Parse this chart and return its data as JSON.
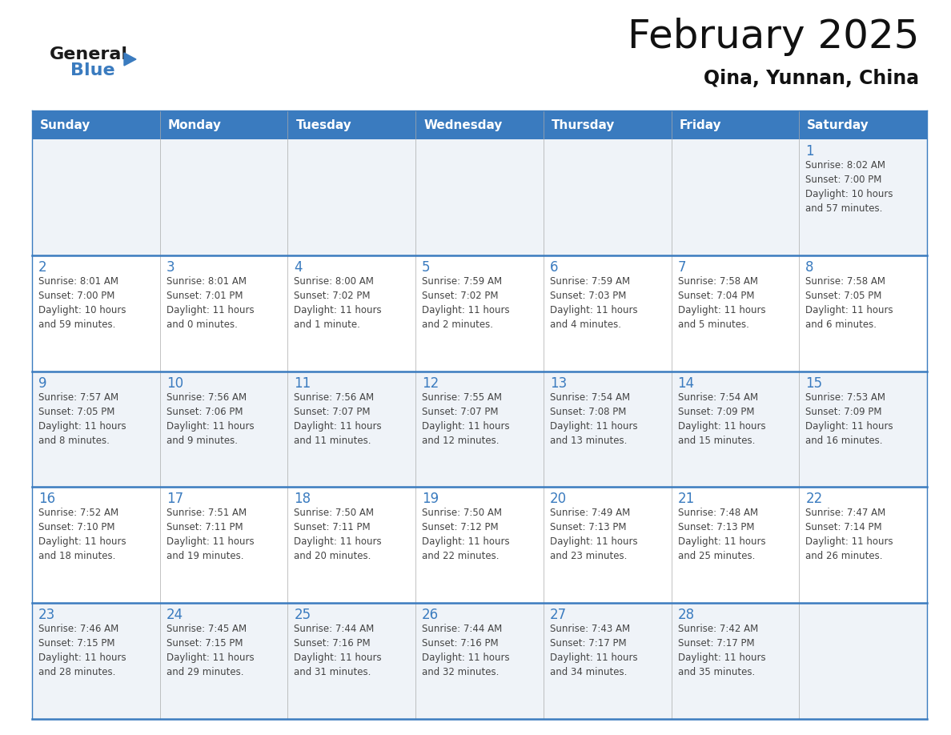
{
  "title": "February 2025",
  "subtitle": "Qina, Yunnan, China",
  "header_bg_color": "#3a7bbf",
  "header_text_color": "#ffffff",
  "days_of_week": [
    "Sunday",
    "Monday",
    "Tuesday",
    "Wednesday",
    "Thursday",
    "Friday",
    "Saturday"
  ],
  "cell_bg_row0": "#eff3f8",
  "cell_bg_row1": "#ffffff",
  "divider_color": "#3a7bbf",
  "day_number_color": "#3a7bbf",
  "text_color": "#444444",
  "logo_text_color": "#1a1a1a",
  "logo_blue_color": "#3a7bbf",
  "calendar_data": [
    [
      {
        "day": null,
        "sunrise": null,
        "sunset": null,
        "daylight": null
      },
      {
        "day": null,
        "sunrise": null,
        "sunset": null,
        "daylight": null
      },
      {
        "day": null,
        "sunrise": null,
        "sunset": null,
        "daylight": null
      },
      {
        "day": null,
        "sunrise": null,
        "sunset": null,
        "daylight": null
      },
      {
        "day": null,
        "sunrise": null,
        "sunset": null,
        "daylight": null
      },
      {
        "day": null,
        "sunrise": null,
        "sunset": null,
        "daylight": null
      },
      {
        "day": 1,
        "sunrise": "8:02 AM",
        "sunset": "7:00 PM",
        "daylight_line1": "Daylight: 10 hours",
        "daylight_line2": "and 57 minutes."
      }
    ],
    [
      {
        "day": 2,
        "sunrise": "8:01 AM",
        "sunset": "7:00 PM",
        "daylight_line1": "Daylight: 10 hours",
        "daylight_line2": "and 59 minutes."
      },
      {
        "day": 3,
        "sunrise": "8:01 AM",
        "sunset": "7:01 PM",
        "daylight_line1": "Daylight: 11 hours",
        "daylight_line2": "and 0 minutes."
      },
      {
        "day": 4,
        "sunrise": "8:00 AM",
        "sunset": "7:02 PM",
        "daylight_line1": "Daylight: 11 hours",
        "daylight_line2": "and 1 minute."
      },
      {
        "day": 5,
        "sunrise": "7:59 AM",
        "sunset": "7:02 PM",
        "daylight_line1": "Daylight: 11 hours",
        "daylight_line2": "and 2 minutes."
      },
      {
        "day": 6,
        "sunrise": "7:59 AM",
        "sunset": "7:03 PM",
        "daylight_line1": "Daylight: 11 hours",
        "daylight_line2": "and 4 minutes."
      },
      {
        "day": 7,
        "sunrise": "7:58 AM",
        "sunset": "7:04 PM",
        "daylight_line1": "Daylight: 11 hours",
        "daylight_line2": "and 5 minutes."
      },
      {
        "day": 8,
        "sunrise": "7:58 AM",
        "sunset": "7:05 PM",
        "daylight_line1": "Daylight: 11 hours",
        "daylight_line2": "and 6 minutes."
      }
    ],
    [
      {
        "day": 9,
        "sunrise": "7:57 AM",
        "sunset": "7:05 PM",
        "daylight_line1": "Daylight: 11 hours",
        "daylight_line2": "and 8 minutes."
      },
      {
        "day": 10,
        "sunrise": "7:56 AM",
        "sunset": "7:06 PM",
        "daylight_line1": "Daylight: 11 hours",
        "daylight_line2": "and 9 minutes."
      },
      {
        "day": 11,
        "sunrise": "7:56 AM",
        "sunset": "7:07 PM",
        "daylight_line1": "Daylight: 11 hours",
        "daylight_line2": "and 11 minutes."
      },
      {
        "day": 12,
        "sunrise": "7:55 AM",
        "sunset": "7:07 PM",
        "daylight_line1": "Daylight: 11 hours",
        "daylight_line2": "and 12 minutes."
      },
      {
        "day": 13,
        "sunrise": "7:54 AM",
        "sunset": "7:08 PM",
        "daylight_line1": "Daylight: 11 hours",
        "daylight_line2": "and 13 minutes."
      },
      {
        "day": 14,
        "sunrise": "7:54 AM",
        "sunset": "7:09 PM",
        "daylight_line1": "Daylight: 11 hours",
        "daylight_line2": "and 15 minutes."
      },
      {
        "day": 15,
        "sunrise": "7:53 AM",
        "sunset": "7:09 PM",
        "daylight_line1": "Daylight: 11 hours",
        "daylight_line2": "and 16 minutes."
      }
    ],
    [
      {
        "day": 16,
        "sunrise": "7:52 AM",
        "sunset": "7:10 PM",
        "daylight_line1": "Daylight: 11 hours",
        "daylight_line2": "and 18 minutes."
      },
      {
        "day": 17,
        "sunrise": "7:51 AM",
        "sunset": "7:11 PM",
        "daylight_line1": "Daylight: 11 hours",
        "daylight_line2": "and 19 minutes."
      },
      {
        "day": 18,
        "sunrise": "7:50 AM",
        "sunset": "7:11 PM",
        "daylight_line1": "Daylight: 11 hours",
        "daylight_line2": "and 20 minutes."
      },
      {
        "day": 19,
        "sunrise": "7:50 AM",
        "sunset": "7:12 PM",
        "daylight_line1": "Daylight: 11 hours",
        "daylight_line2": "and 22 minutes."
      },
      {
        "day": 20,
        "sunrise": "7:49 AM",
        "sunset": "7:13 PM",
        "daylight_line1": "Daylight: 11 hours",
        "daylight_line2": "and 23 minutes."
      },
      {
        "day": 21,
        "sunrise": "7:48 AM",
        "sunset": "7:13 PM",
        "daylight_line1": "Daylight: 11 hours",
        "daylight_line2": "and 25 minutes."
      },
      {
        "day": 22,
        "sunrise": "7:47 AM",
        "sunset": "7:14 PM",
        "daylight_line1": "Daylight: 11 hours",
        "daylight_line2": "and 26 minutes."
      }
    ],
    [
      {
        "day": 23,
        "sunrise": "7:46 AM",
        "sunset": "7:15 PM",
        "daylight_line1": "Daylight: 11 hours",
        "daylight_line2": "and 28 minutes."
      },
      {
        "day": 24,
        "sunrise": "7:45 AM",
        "sunset": "7:15 PM",
        "daylight_line1": "Daylight: 11 hours",
        "daylight_line2": "and 29 minutes."
      },
      {
        "day": 25,
        "sunrise": "7:44 AM",
        "sunset": "7:16 PM",
        "daylight_line1": "Daylight: 11 hours",
        "daylight_line2": "and 31 minutes."
      },
      {
        "day": 26,
        "sunrise": "7:44 AM",
        "sunset": "7:16 PM",
        "daylight_line1": "Daylight: 11 hours",
        "daylight_line2": "and 32 minutes."
      },
      {
        "day": 27,
        "sunrise": "7:43 AM",
        "sunset": "7:17 PM",
        "daylight_line1": "Daylight: 11 hours",
        "daylight_line2": "and 34 minutes."
      },
      {
        "day": 28,
        "sunrise": "7:42 AM",
        "sunset": "7:17 PM",
        "daylight_line1": "Daylight: 11 hours",
        "daylight_line2": "and 35 minutes."
      },
      {
        "day": null,
        "sunrise": null,
        "sunset": null,
        "daylight_line1": null,
        "daylight_line2": null
      }
    ]
  ]
}
